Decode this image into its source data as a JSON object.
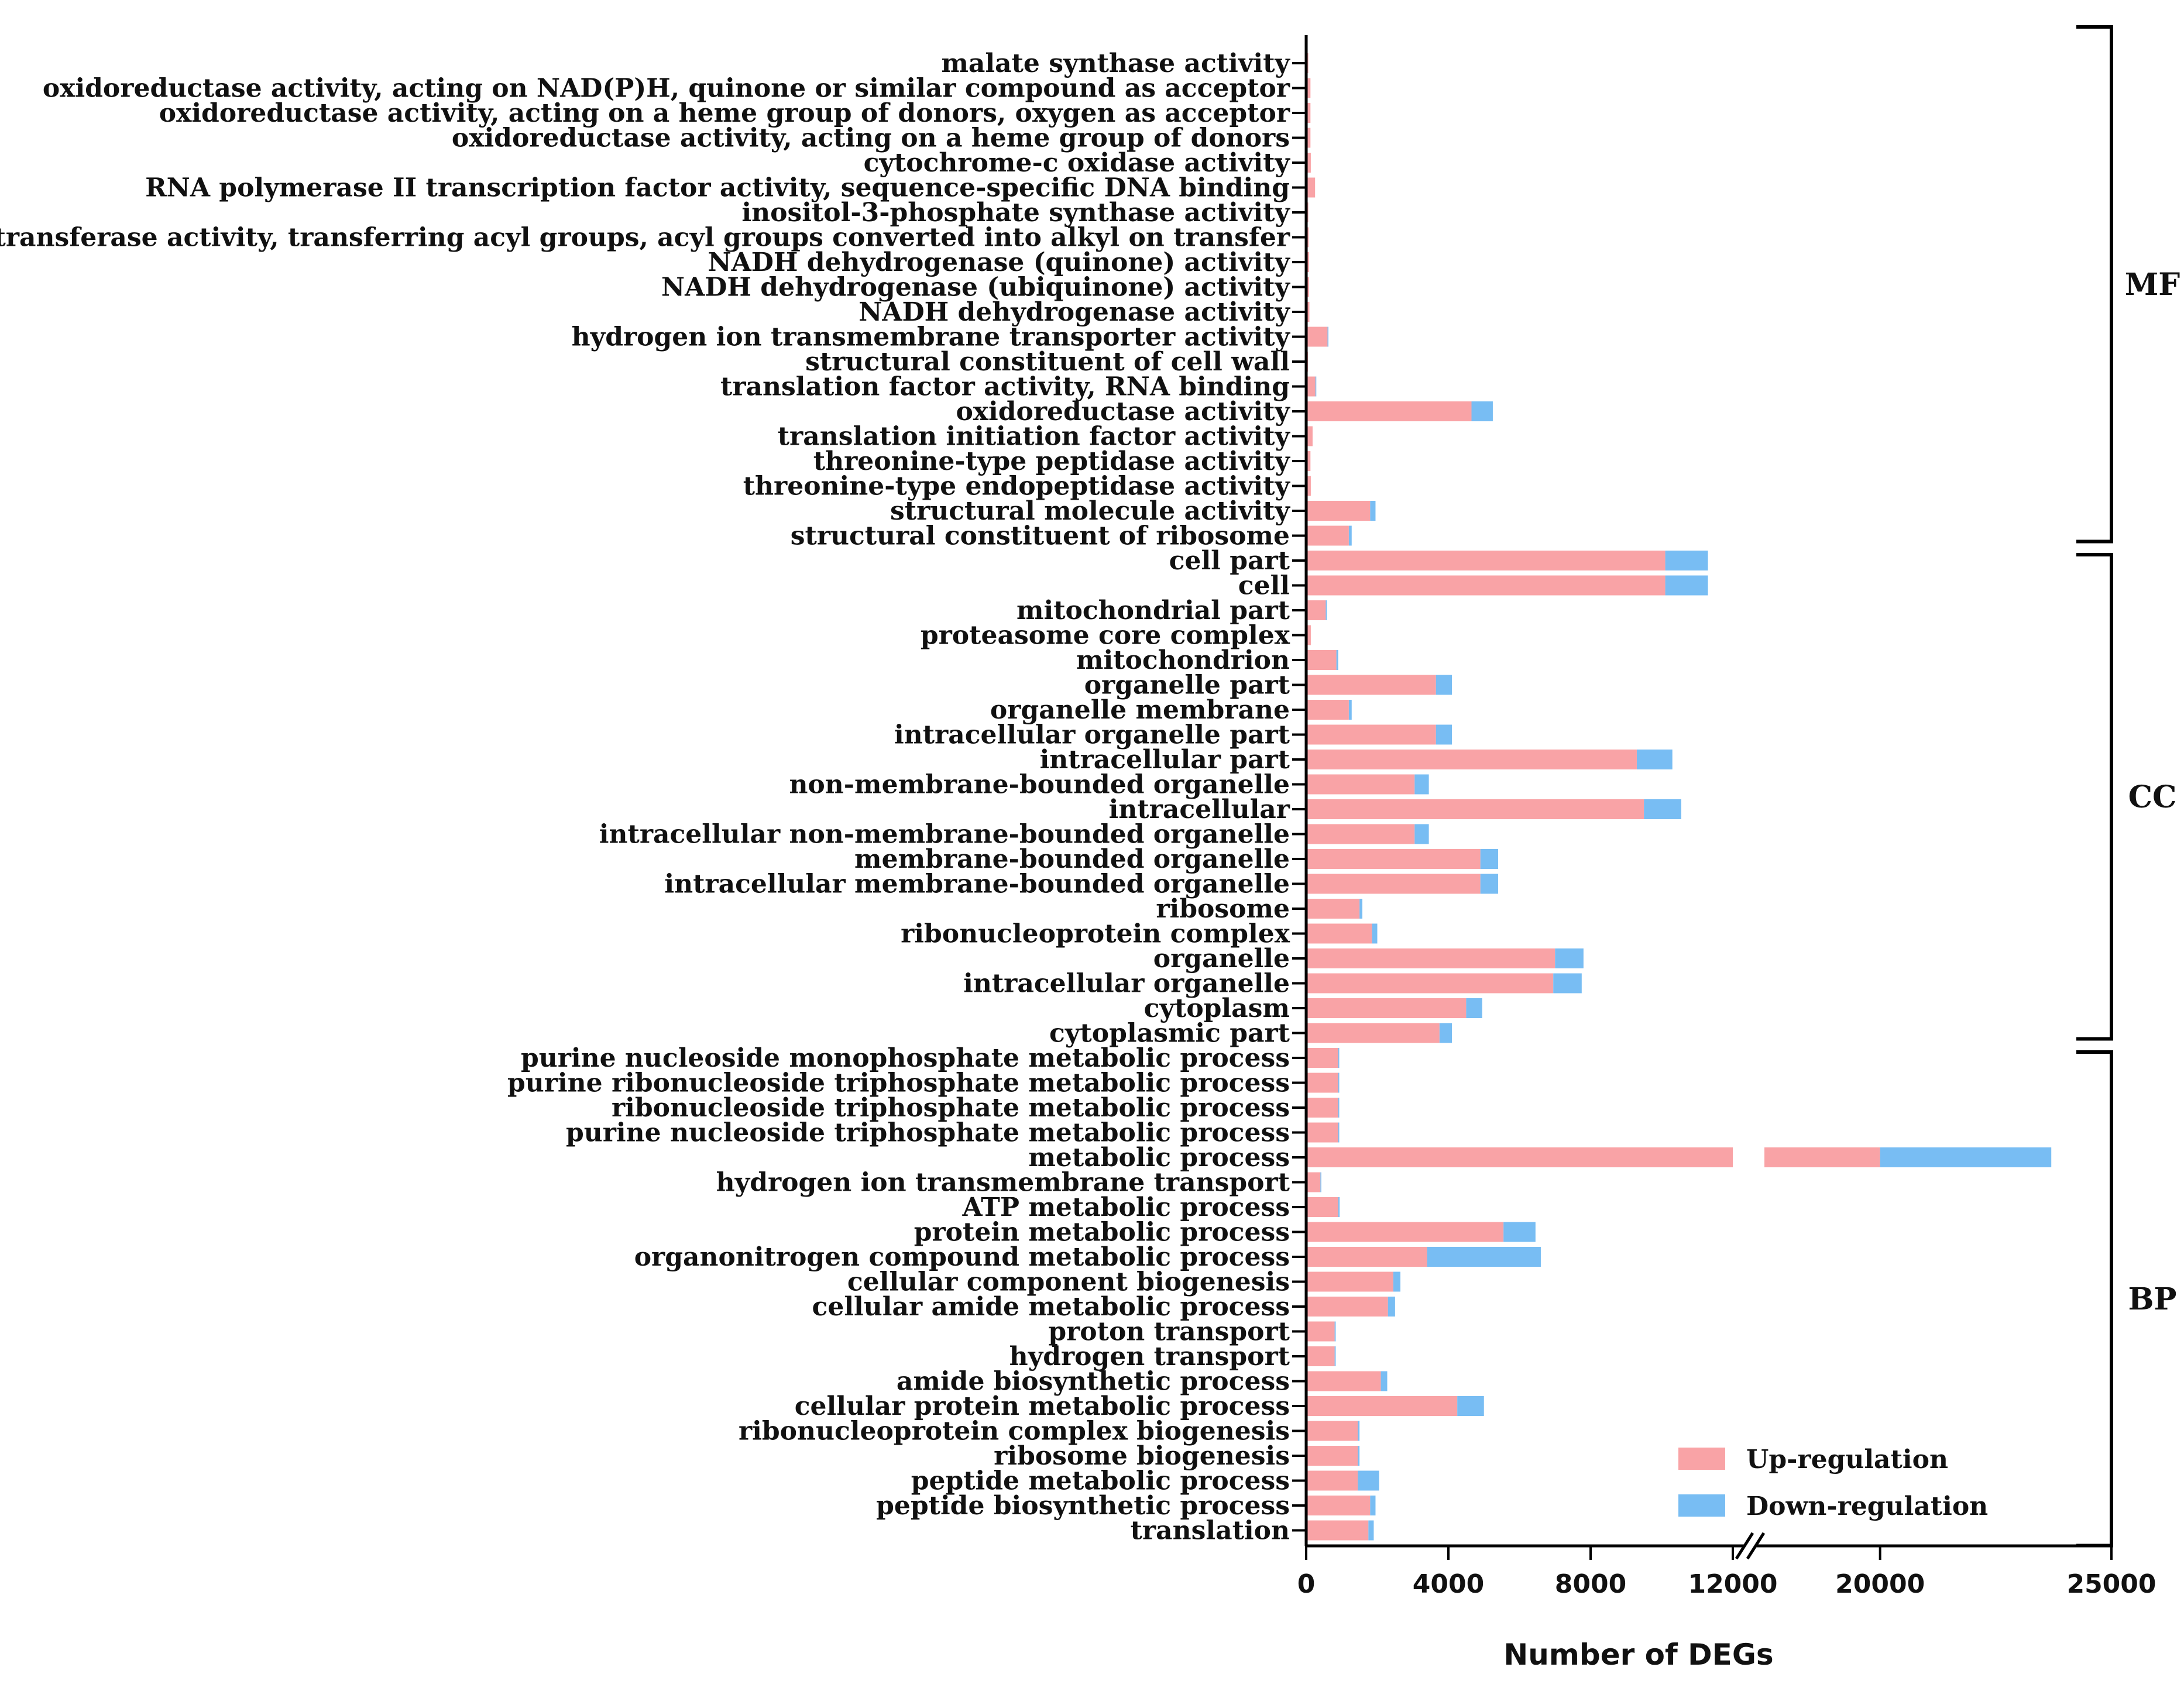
{
  "chart_data": {
    "type": "bar",
    "stacked": true,
    "orientation": "horizontal",
    "xlabel": "Number of DEGs",
    "x_axis": {
      "broken": true,
      "segment1_range": [
        0,
        12000
      ],
      "segment2_range": [
        17500,
        25000
      ],
      "tick_labels": [
        "0",
        "4000",
        "8000",
        "12000",
        "20000",
        "25000"
      ],
      "tick_values": [
        0,
        4000,
        8000,
        12000,
        20000,
        25000
      ]
    },
    "legend": {
      "position": "bottom-right",
      "entries": [
        "Up-regulation",
        "Down-regulation"
      ]
    },
    "colors": {
      "up": "#F9A3A6",
      "down": "#78BDF3",
      "axis": "#000000"
    },
    "categories": [
      "malate synthase activity",
      "oxidoreductase activity, acting on NAD(P)H, quinone or similar compound as acceptor",
      "oxidoreductase activity, acting on a heme group of donors, oxygen as acceptor",
      "oxidoreductase activity, acting on a heme group of donors",
      "cytochrome-c oxidase activity",
      "RNA polymerase II transcription factor activity, sequence-specific DNA binding",
      "inositol-3-phosphate synthase activity",
      "transferase activity, transferring acyl groups, acyl groups converted into alkyl on transfer",
      "NADH dehydrogenase (quinone) activity",
      "NADH dehydrogenase (ubiquinone) activity",
      "NADH dehydrogenase activity",
      "hydrogen ion transmembrane transporter activity",
      "structural constituent of cell wall",
      "translation factor activity, RNA binding",
      "oxidoreductase activity",
      "translation initiation factor activity",
      "threonine-type peptidase activity",
      "threonine-type endopeptidase activity",
      "structural molecule activity",
      "structural constituent of ribosome",
      "cell part",
      "cell",
      "mitochondrial part",
      "proteasome core complex",
      "mitochondrion",
      "organelle part",
      "organelle membrane",
      "intracellular organelle part",
      "intracellular part",
      "non-membrane-bounded organelle",
      "intracellular",
      "intracellular non-membrane-bounded organelle",
      "membrane-bounded organelle",
      "intracellular membrane-bounded organelle",
      "ribosome",
      "ribonucleoprotein complex",
      "organelle",
      "intracellular organelle",
      "cytoplasm",
      "cytoplasmic part",
      "purine nucleoside monophosphate metabolic process",
      "purine ribonucleoside triphosphate metabolic process",
      "ribonucleoside triphosphate metabolic process",
      "purine nucleoside triphosphate metabolic process",
      "metabolic process",
      "hydrogen ion transmembrane transport",
      "ATP metabolic process",
      "protein metabolic process",
      "organonitrogen compound metabolic process",
      "cellular component biogenesis",
      "cellular amide metabolic process",
      "proton transport",
      "hydrogen transport",
      "amide biosynthetic process",
      "cellular protein metabolic process",
      "ribonucleoprotein complex biogenesis",
      "ribosome biogenesis",
      "peptide metabolic process",
      "peptide biosynthetic process",
      "translation"
    ],
    "series": [
      {
        "name": "Up-regulation",
        "values": [
          60,
          120,
          120,
          120,
          130,
          250,
          60,
          70,
          80,
          80,
          90,
          600,
          50,
          260,
          4650,
          180,
          120,
          130,
          1800,
          1200,
          10100,
          10100,
          550,
          130,
          850,
          3650,
          1200,
          3650,
          9300,
          3050,
          9500,
          3050,
          4900,
          4900,
          1500,
          1850,
          7000,
          6950,
          4500,
          3750,
          900,
          900,
          900,
          900,
          20000,
          400,
          900,
          5550,
          3400,
          2450,
          2300,
          800,
          800,
          2100,
          4250,
          1450,
          1450,
          1450,
          1800,
          1750
        ]
      },
      {
        "name": "Down-regulation",
        "values": [
          0,
          0,
          0,
          0,
          0,
          0,
          0,
          0,
          0,
          0,
          0,
          20,
          0,
          20,
          600,
          0,
          0,
          0,
          150,
          80,
          1200,
          1200,
          30,
          0,
          50,
          450,
          80,
          450,
          1000,
          400,
          1050,
          400,
          500,
          500,
          80,
          150,
          800,
          800,
          450,
          350,
          30,
          30,
          30,
          30,
          3700,
          20,
          40,
          900,
          3200,
          200,
          200,
          30,
          30,
          180,
          750,
          50,
          50,
          600,
          150,
          150
        ]
      }
    ],
    "groups": [
      {
        "label": "MF",
        "from": 0,
        "to": 19
      },
      {
        "label": "CC",
        "from": 20,
        "to": 39
      },
      {
        "label": "BP",
        "from": 40,
        "to": 59
      }
    ]
  }
}
